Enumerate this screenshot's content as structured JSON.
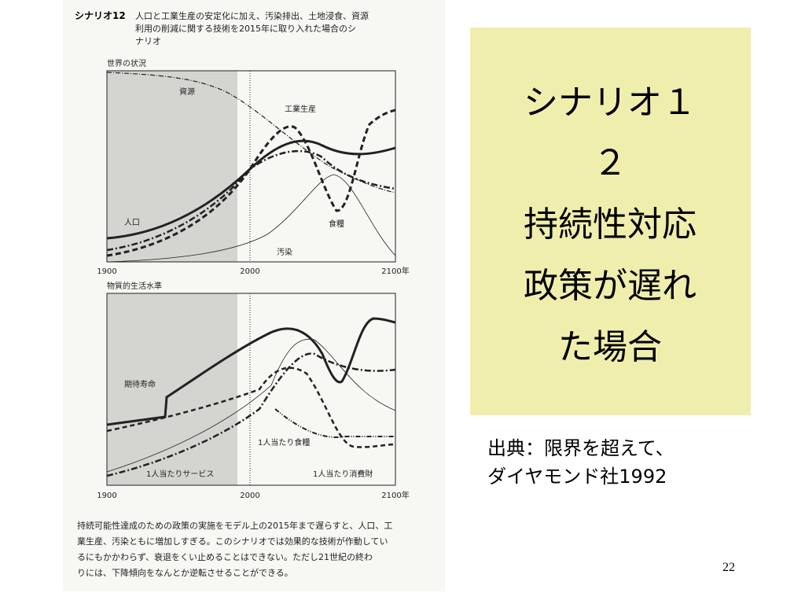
{
  "book": {
    "heading": {
      "label": "シナリオ12",
      "lines": [
        "人口と工業生産の安定化に加え、汚染排出、土地浸食、資源",
        "利用の削減に関する技術を2015年に取り入れた場合のシ",
        "ナリオ"
      ]
    },
    "chart1": {
      "title": "世界の状況",
      "labels": [
        "資源",
        "工業生産",
        "人口",
        "食糧",
        "汚染"
      ],
      "xticks": [
        "1900",
        "2000",
        "2100年"
      ]
    },
    "chart2": {
      "title": "物質的生活水準",
      "labels": [
        "期待寿命",
        "1人当たり食糧",
        "1人当たりサービス",
        "1人当たり消費財"
      ],
      "xticks": [
        "1900",
        "2000",
        "2100年"
      ]
    },
    "caption": [
      "持続可能性達成のための政策の実施をモデル上の2015年まで遅らすと、人口、工",
      "業生産、汚染ともに増加しすぎる。このシナリオでは効果的な技術が作動してい",
      "るにもかかわらず、衰退をくい止めることはできない。ただし21世紀の終わ",
      "りには、下降傾向をなんとか逆転させることができる。"
    ]
  },
  "slide": {
    "title": [
      "シナリオ１",
      "２",
      "持続性対応",
      "政策が遅れ",
      "た場合"
    ],
    "source": [
      "出典：限界を超えて、",
      "ダイヤモンド社1992"
    ],
    "page": "22"
  }
}
